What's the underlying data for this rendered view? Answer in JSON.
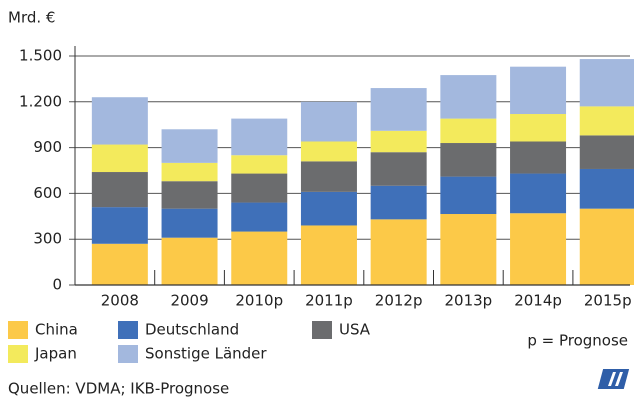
{
  "chart_data": {
    "type": "stacked_bar",
    "y_label": "Mrd. €",
    "categories": [
      "2008",
      "2009",
      "2010p",
      "2011p",
      "2012p",
      "2013p",
      "2014p",
      "2015p"
    ],
    "series": [
      {
        "name": "China",
        "color": "#fcc948",
        "values": [
          270,
          310,
          350,
          390,
          430,
          465,
          470,
          500
        ]
      },
      {
        "name": "Deutschland",
        "color": "#3f70b9",
        "values": [
          240,
          190,
          190,
          220,
          220,
          245,
          260,
          260
        ]
      },
      {
        "name": "USA",
        "color": "#6b6c6e",
        "values": [
          230,
          180,
          190,
          200,
          220,
          220,
          210,
          220
        ]
      },
      {
        "name": "Japan",
        "color": "#f3ea5c",
        "values": [
          180,
          120,
          120,
          130,
          140,
          160,
          180,
          190
        ]
      },
      {
        "name": "Sonstige Länder",
        "color": "#a3b8de",
        "values": [
          310,
          220,
          240,
          260,
          280,
          285,
          310,
          310
        ]
      }
    ],
    "ylim": [
      0,
      1500
    ],
    "yticks": [
      0,
      300,
      600,
      900,
      {
        "value": 1200,
        "label": "1.200"
      },
      {
        "value": 1500,
        "label": "1.500"
      }
    ],
    "grid": true,
    "annotation": "p = Prognose",
    "source": "Quellen: VDMA; IKB-Prognose"
  }
}
